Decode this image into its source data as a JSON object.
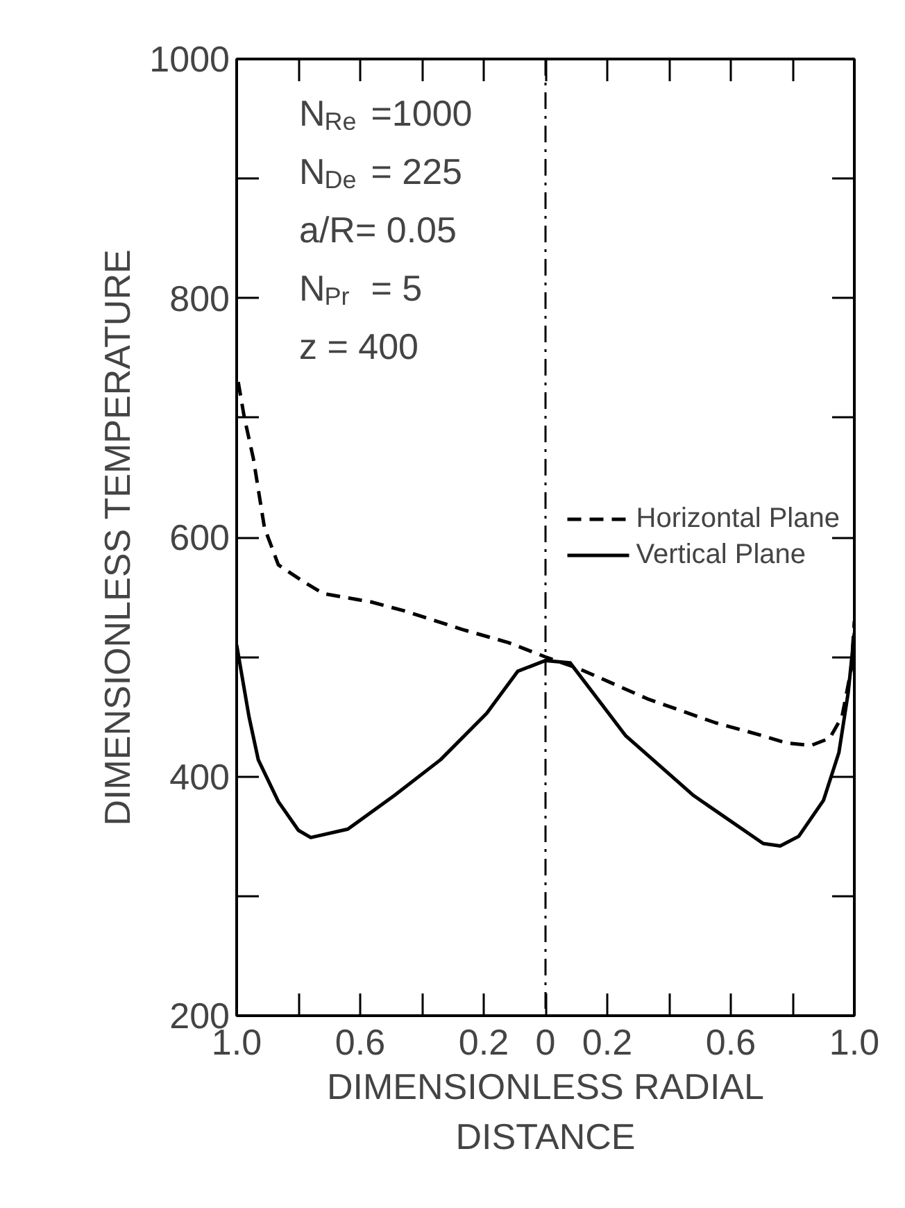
{
  "chart_data": {
    "type": "line",
    "xlabel": "DIMENSIONLESS RADIAL DISTANCE",
    "ylabel": "DIMENSIONLESS TEMPERATURE",
    "xlim": [
      -1,
      1
    ],
    "xticks": [
      {
        "value": -1,
        "label": "1.0"
      },
      {
        "value": -0.8,
        "label": null
      },
      {
        "value": -0.6,
        "label": "0.6"
      },
      {
        "value": -0.4,
        "label": null
      },
      {
        "value": -0.2,
        "label": "0.2"
      },
      0,
      {
        "value": 0.2,
        "label": "0.2"
      },
      {
        "value": 0.4,
        "label": null
      },
      {
        "value": 0.6,
        "label": "0.6"
      },
      {
        "value": 0.8,
        "label": null
      },
      {
        "value": 1,
        "label": "1.0"
      }
    ],
    "ylim": [
      200,
      1000
    ],
    "yticks": [
      200,
      {
        "value": 300,
        "label": null
      },
      400,
      {
        "value": 500,
        "label": null
      },
      600,
      {
        "value": 700,
        "label": null
      },
      800,
      {
        "value": 900,
        "label": null
      },
      1000
    ],
    "series": [
      {
        "name": "Horizontal Plane",
        "color": "#000000",
        "line_style": "dashed",
        "x": [
          -0.995,
          -0.975,
          -0.946,
          -0.91,
          -0.865,
          -0.79,
          -0.72,
          -0.565,
          -0.45,
          -0.27,
          -0.12,
          0,
          0.11,
          0.33,
          0.55,
          0.705,
          0.78,
          0.86,
          0.92,
          0.96,
          0.99,
          1.0
        ],
        "values": [
          730,
          700,
          666,
          608,
          577,
          564,
          553,
          546,
          538,
          523,
          512,
          500,
          490,
          465,
          445,
          434,
          428,
          426,
          432,
          450,
          490,
          530
        ]
      },
      {
        "name": "Vertical Plane",
        "color": "#000000",
        "line_style": "solid",
        "x": [
          -1.0,
          -0.99,
          -0.96,
          -0.93,
          -0.865,
          -0.8,
          -0.76,
          -0.64,
          -0.49,
          -0.34,
          -0.19,
          -0.09,
          0,
          0.08,
          0.26,
          0.48,
          0.705,
          0.76,
          0.82,
          0.9,
          0.95,
          0.98,
          1.0
        ],
        "values": [
          510,
          495,
          450,
          414,
          379,
          355,
          349,
          356,
          384,
          414,
          453,
          488,
          497,
          495,
          434,
          384,
          344,
          342,
          350,
          380,
          420,
          470,
          520
        ]
      }
    ],
    "ref_lines": [
      {
        "axis": "x",
        "value": 0,
        "label": null,
        "line_style": "dashdot"
      }
    ],
    "annotations": [
      "N$_{Re}$ =1000",
      "N$_{De}$ = 225",
      "a/R= 0.05",
      "N$_{Pr}$ = 5",
      "z  = 400"
    ],
    "legend": "right",
    "grid": false
  }
}
